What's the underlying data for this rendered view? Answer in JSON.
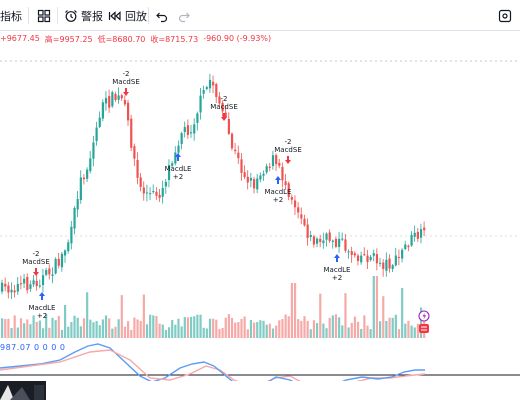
{
  "toolbar": {
    "indicators_label": "指标",
    "alert_label": "警报",
    "replay_label": "回放"
  },
  "ohlc": {
    "open_fragment": "+9677.45",
    "high": "高=9957.25",
    "low": "低=8680.70",
    "close": "收=8715.73",
    "change": "-960.90 (-9.93%)"
  },
  "macd_legend": "987.07  0  0  0  0",
  "colors": {
    "up": "#26a69a",
    "down": "#ef5350",
    "volume_up": "#80cbc4",
    "volume_down": "#f7a9a7",
    "macd_line": "#2962ff",
    "signal_line": "#f23645"
  },
  "icons": [
    "grid-icon",
    "alarm-clock-icon",
    "replay-icon",
    "undo-icon",
    "redo-icon",
    "settings-square-icon"
  ],
  "signals": [
    {
      "name": "signal-macdle-1",
      "type": "MacdLE",
      "qty": "+2"
    },
    {
      "name": "signal-macdse-1",
      "type": "MacdSE",
      "qty": "-2"
    },
    {
      "name": "signal-macdse-2",
      "type": "MacdSE",
      "qty": "-2"
    },
    {
      "name": "signal-macdle-2",
      "type": "MacdLE",
      "qty": "+2"
    },
    {
      "name": "signal-macdse-3",
      "type": "MacdSE",
      "qty": "-2"
    },
    {
      "name": "signal-macdse-4",
      "type": "MacdSE",
      "qty": "-2"
    },
    {
      "name": "signal-macdle-3",
      "type": "MacdLE",
      "qty": "+2"
    },
    {
      "name": "signal-macdle-4",
      "type": "MacdLE",
      "qty": "+2"
    }
  ]
}
